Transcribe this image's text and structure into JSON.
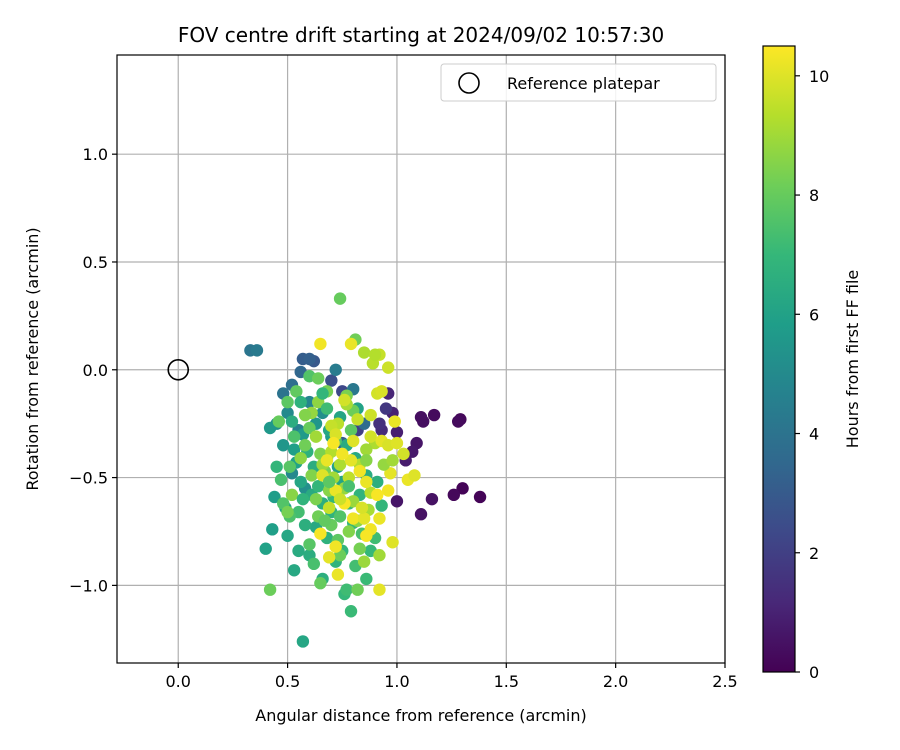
{
  "chart_data": {
    "type": "scatter",
    "title": "FOV centre drift starting at 2024/09/02 10:57:30",
    "xlabel": "Angular distance from reference (arcmin)",
    "ylabel": "Rotation from reference (arcmin)",
    "xlim": [
      -0.28,
      2.5
    ],
    "ylim": [
      -1.36,
      1.46
    ],
    "x_ticks": [
      "0.0",
      "0.5",
      "1.0",
      "1.5",
      "2.0",
      "2.5"
    ],
    "x_tick_values": [
      0.0,
      0.5,
      1.0,
      1.5,
      2.0,
      2.5
    ],
    "y_ticks": [
      "1.0",
      "0.5",
      "0.0",
      "−0.5",
      "−1.0"
    ],
    "y_tick_values": [
      1.0,
      0.5,
      0.0,
      -0.5,
      -1.0
    ],
    "grid": true,
    "legend": {
      "placement": "top-right",
      "entries": [
        {
          "label": "Reference platepar",
          "marker": "open-circle"
        }
      ]
    },
    "reference_point": {
      "x": 0.0,
      "y": 0.0
    },
    "colorbar": {
      "label": "Hours from first FF file",
      "range": [
        0,
        10.5
      ],
      "ticks": [
        "0",
        "2",
        "4",
        "6",
        "8",
        "10"
      ],
      "tick_values": [
        0,
        2,
        4,
        6,
        8,
        10
      ],
      "colormap": "viridis",
      "stops": [
        "#440154",
        "#482878",
        "#3e4989",
        "#31688e",
        "#26828e",
        "#1f9e89",
        "#35b779",
        "#6ece58",
        "#b5de2b",
        "#fde725"
      ]
    },
    "points": [
      {
        "x": 1.38,
        "y": -0.59,
        "t": 0.1
      },
      {
        "x": 1.3,
        "y": -0.55,
        "t": 0.1
      },
      {
        "x": 1.26,
        "y": -0.58,
        "t": 0.2
      },
      {
        "x": 1.29,
        "y": -0.23,
        "t": 0.2
      },
      {
        "x": 1.28,
        "y": -0.24,
        "t": 0.3
      },
      {
        "x": 1.17,
        "y": -0.21,
        "t": 0.3
      },
      {
        "x": 1.12,
        "y": -0.24,
        "t": 0.4
      },
      {
        "x": 1.11,
        "y": -0.22,
        "t": 0.4
      },
      {
        "x": 1.16,
        "y": -0.6,
        "t": 0.5
      },
      {
        "x": 1.11,
        "y": -0.67,
        "t": 0.5
      },
      {
        "x": 1.0,
        "y": -0.61,
        "t": 0.6
      },
      {
        "x": 1.09,
        "y": -0.34,
        "t": 0.6
      },
      {
        "x": 1.07,
        "y": -0.38,
        "t": 0.7
      },
      {
        "x": 1.04,
        "y": -0.42,
        "t": 0.8
      },
      {
        "x": 1.0,
        "y": -0.29,
        "t": 0.9
      },
      {
        "x": 0.98,
        "y": -0.2,
        "t": 1.0
      },
      {
        "x": 0.96,
        "y": -0.11,
        "t": 1.1
      },
      {
        "x": 0.93,
        "y": -0.28,
        "t": 1.3
      },
      {
        "x": 0.92,
        "y": -0.25,
        "t": 1.5
      },
      {
        "x": 0.95,
        "y": -0.18,
        "t": 1.7
      },
      {
        "x": 0.82,
        "y": -0.28,
        "t": 2.0
      },
      {
        "x": 0.75,
        "y": -0.1,
        "t": 2.3
      },
      {
        "x": 0.7,
        "y": -0.05,
        "t": 2.6
      },
      {
        "x": 0.62,
        "y": 0.04,
        "t": 2.9
      },
      {
        "x": 0.57,
        "y": 0.05,
        "t": 3.1
      },
      {
        "x": 0.6,
        "y": 0.05,
        "t": 3.2
      },
      {
        "x": 0.56,
        "y": -0.01,
        "t": 3.5
      },
      {
        "x": 0.52,
        "y": -0.07,
        "t": 3.8
      },
      {
        "x": 0.48,
        "y": -0.11,
        "t": 4.0
      },
      {
        "x": 0.33,
        "y": 0.09,
        "t": 4.1
      },
      {
        "x": 0.36,
        "y": 0.09,
        "t": 4.3
      },
      {
        "x": 0.72,
        "y": 0.0,
        "t": 4.4
      },
      {
        "x": 0.8,
        "y": -0.09,
        "t": 4.2
      },
      {
        "x": 0.85,
        "y": -0.25,
        "t": 3.7
      },
      {
        "x": 0.75,
        "y": -0.34,
        "t": 3.0
      },
      {
        "x": 0.55,
        "y": -0.28,
        "t": 4.6
      },
      {
        "x": 0.6,
        "y": -0.15,
        "t": 4.8
      },
      {
        "x": 0.5,
        "y": -0.2,
        "t": 5.0
      },
      {
        "x": 0.45,
        "y": -0.25,
        "t": 5.3
      },
      {
        "x": 0.42,
        "y": -0.27,
        "t": 5.6
      },
      {
        "x": 0.48,
        "y": -0.35,
        "t": 5.5
      },
      {
        "x": 0.52,
        "y": -0.48,
        "t": 4.9
      },
      {
        "x": 0.58,
        "y": -0.55,
        "t": 5.2
      },
      {
        "x": 0.44,
        "y": -0.59,
        "t": 5.8
      },
      {
        "x": 0.43,
        "y": -0.74,
        "t": 5.9
      },
      {
        "x": 0.4,
        "y": -0.83,
        "t": 6.0
      },
      {
        "x": 0.49,
        "y": -0.64,
        "t": 6.1
      },
      {
        "x": 0.5,
        "y": -0.77,
        "t": 6.2
      },
      {
        "x": 0.53,
        "y": -0.93,
        "t": 6.3
      },
      {
        "x": 0.57,
        "y": -1.26,
        "t": 6.2
      },
      {
        "x": 0.55,
        "y": -0.84,
        "t": 6.4
      },
      {
        "x": 0.6,
        "y": -0.86,
        "t": 6.5
      },
      {
        "x": 0.63,
        "y": -0.73,
        "t": 6.3
      },
      {
        "x": 0.66,
        "y": -0.97,
        "t": 6.6
      },
      {
        "x": 0.68,
        "y": -0.78,
        "t": 6.7
      },
      {
        "x": 0.72,
        "y": -0.89,
        "t": 6.8
      },
      {
        "x": 0.75,
        "y": -0.84,
        "t": 6.9
      },
      {
        "x": 0.76,
        "y": -1.04,
        "t": 7.0
      },
      {
        "x": 0.79,
        "y": -1.12,
        "t": 7.1
      },
      {
        "x": 0.77,
        "y": -1.02,
        "t": 7.2
      },
      {
        "x": 0.81,
        "y": -0.91,
        "t": 7.3
      },
      {
        "x": 0.86,
        "y": -0.97,
        "t": 7.1
      },
      {
        "x": 0.88,
        "y": -0.84,
        "t": 7.0
      },
      {
        "x": 0.9,
        "y": -0.78,
        "t": 7.2
      },
      {
        "x": 0.84,
        "y": -0.76,
        "t": 7.4
      },
      {
        "x": 0.8,
        "y": -0.71,
        "t": 7.0
      },
      {
        "x": 0.7,
        "y": -0.66,
        "t": 6.8
      },
      {
        "x": 0.66,
        "y": -0.62,
        "t": 6.6
      },
      {
        "x": 0.61,
        "y": -0.58,
        "t": 6.4
      },
      {
        "x": 0.56,
        "y": -0.52,
        "t": 6.2
      },
      {
        "x": 0.54,
        "y": -0.43,
        "t": 6.0
      },
      {
        "x": 0.53,
        "y": -0.37,
        "t": 5.9
      },
      {
        "x": 0.57,
        "y": -0.3,
        "t": 5.7
      },
      {
        "x": 0.63,
        "y": -0.25,
        "t": 5.5
      },
      {
        "x": 0.66,
        "y": -0.2,
        "t": 5.2
      },
      {
        "x": 0.7,
        "y": -0.31,
        "t": 5.8
      },
      {
        "x": 0.73,
        "y": -0.45,
        "t": 6.0
      },
      {
        "x": 0.75,
        "y": -0.52,
        "t": 6.1
      },
      {
        "x": 0.68,
        "y": -0.41,
        "t": 6.3
      },
      {
        "x": 0.62,
        "y": -0.45,
        "t": 6.5
      },
      {
        "x": 0.59,
        "y": -0.38,
        "t": 6.7
      },
      {
        "x": 0.64,
        "y": -0.54,
        "t": 6.9
      },
      {
        "x": 0.71,
        "y": -0.59,
        "t": 7.0
      },
      {
        "x": 0.78,
        "y": -0.62,
        "t": 7.1
      },
      {
        "x": 0.83,
        "y": -0.58,
        "t": 6.8
      },
      {
        "x": 0.86,
        "y": -0.49,
        "t": 6.5
      },
      {
        "x": 0.81,
        "y": -0.41,
        "t": 6.3
      },
      {
        "x": 0.77,
        "y": -0.35,
        "t": 6.4
      },
      {
        "x": 0.69,
        "y": -0.28,
        "t": 6.2
      },
      {
        "x": 0.74,
        "y": -0.22,
        "t": 6.1
      },
      {
        "x": 0.82,
        "y": -0.18,
        "t": 6.0
      },
      {
        "x": 0.91,
        "y": -0.52,
        "t": 6.6
      },
      {
        "x": 0.93,
        "y": -0.63,
        "t": 6.9
      },
      {
        "x": 0.55,
        "y": -0.66,
        "t": 7.3
      },
      {
        "x": 0.51,
        "y": -0.68,
        "t": 7.5
      },
      {
        "x": 0.48,
        "y": -0.62,
        "t": 7.6
      },
      {
        "x": 0.47,
        "y": -0.51,
        "t": 7.4
      },
      {
        "x": 0.51,
        "y": -0.45,
        "t": 7.7
      },
      {
        "x": 0.53,
        "y": -0.31,
        "t": 7.5
      },
      {
        "x": 0.5,
        "y": -0.15,
        "t": 7.8
      },
      {
        "x": 0.46,
        "y": -0.24,
        "t": 8.0
      },
      {
        "x": 0.54,
        "y": -0.1,
        "t": 7.9
      },
      {
        "x": 0.6,
        "y": -0.03,
        "t": 7.6
      },
      {
        "x": 0.64,
        "y": -0.04,
        "t": 8.1
      },
      {
        "x": 0.74,
        "y": 0.33,
        "t": 8.0
      },
      {
        "x": 0.81,
        "y": 0.14,
        "t": 8.2
      },
      {
        "x": 0.68,
        "y": -0.1,
        "t": 8.3
      },
      {
        "x": 0.77,
        "y": -0.12,
        "t": 8.4
      },
      {
        "x": 0.8,
        "y": -0.19,
        "t": 8.1
      },
      {
        "x": 0.79,
        "y": -0.28,
        "t": 7.8
      },
      {
        "x": 0.72,
        "y": -0.33,
        "t": 7.6
      },
      {
        "x": 0.6,
        "y": -0.27,
        "t": 8.0
      },
      {
        "x": 0.58,
        "y": -0.35,
        "t": 8.2
      },
      {
        "x": 0.65,
        "y": -0.39,
        "t": 8.4
      },
      {
        "x": 0.61,
        "y": -0.49,
        "t": 8.5
      },
      {
        "x": 0.67,
        "y": -0.47,
        "t": 8.3
      },
      {
        "x": 0.69,
        "y": -0.56,
        "t": 8.6
      },
      {
        "x": 0.63,
        "y": -0.6,
        "t": 8.4
      },
      {
        "x": 0.64,
        "y": -0.68,
        "t": 8.2
      },
      {
        "x": 0.7,
        "y": -0.72,
        "t": 8.0
      },
      {
        "x": 0.73,
        "y": -0.79,
        "t": 7.8
      },
      {
        "x": 0.74,
        "y": -0.86,
        "t": 8.1
      },
      {
        "x": 0.78,
        "y": -0.75,
        "t": 8.5
      },
      {
        "x": 0.83,
        "y": -0.83,
        "t": 8.3
      },
      {
        "x": 0.82,
        "y": -1.02,
        "t": 8.2
      },
      {
        "x": 0.65,
        "y": -0.99,
        "t": 8.0
      },
      {
        "x": 0.42,
        "y": -1.02,
        "t": 8.1
      },
      {
        "x": 0.5,
        "y": -0.66,
        "t": 8.3
      },
      {
        "x": 0.52,
        "y": -0.58,
        "t": 8.6
      },
      {
        "x": 0.56,
        "y": -0.41,
        "t": 8.7
      },
      {
        "x": 0.66,
        "y": -0.44,
        "t": 8.9
      },
      {
        "x": 0.71,
        "y": -0.5,
        "t": 9.0
      },
      {
        "x": 0.76,
        "y": -0.55,
        "t": 8.8
      },
      {
        "x": 0.8,
        "y": -0.61,
        "t": 8.9
      },
      {
        "x": 0.87,
        "y": -0.65,
        "t": 9.1
      },
      {
        "x": 0.82,
        "y": -0.7,
        "t": 8.7
      },
      {
        "x": 0.85,
        "y": -0.89,
        "t": 8.9
      },
      {
        "x": 0.92,
        "y": -0.86,
        "t": 9.0
      },
      {
        "x": 0.9,
        "y": -0.34,
        "t": 9.2
      },
      {
        "x": 0.86,
        "y": -0.37,
        "t": 9.0
      },
      {
        "x": 0.83,
        "y": -0.44,
        "t": 9.3
      },
      {
        "x": 0.88,
        "y": -0.57,
        "t": 9.4
      },
      {
        "x": 0.78,
        "y": -0.5,
        "t": 9.5
      },
      {
        "x": 0.74,
        "y": -0.44,
        "t": 9.2
      },
      {
        "x": 0.7,
        "y": -0.38,
        "t": 9.3
      },
      {
        "x": 0.73,
        "y": -0.25,
        "t": 9.4
      },
      {
        "x": 0.77,
        "y": -0.16,
        "t": 9.1
      },
      {
        "x": 0.85,
        "y": 0.08,
        "t": 9.2
      },
      {
        "x": 0.89,
        "y": 0.03,
        "t": 9.4
      },
      {
        "x": 0.92,
        "y": 0.07,
        "t": 9.6
      },
      {
        "x": 0.96,
        "y": 0.01,
        "t": 9.7
      },
      {
        "x": 0.91,
        "y": -0.11,
        "t": 9.8
      },
      {
        "x": 0.93,
        "y": -0.1,
        "t": 9.9
      },
      {
        "x": 0.88,
        "y": -0.21,
        "t": 9.7
      },
      {
        "x": 0.82,
        "y": -0.23,
        "t": 9.6
      },
      {
        "x": 0.76,
        "y": -0.14,
        "t": 9.8
      },
      {
        "x": 0.7,
        "y": -0.26,
        "t": 9.6
      },
      {
        "x": 0.72,
        "y": -0.3,
        "t": 9.9
      },
      {
        "x": 0.8,
        "y": -0.33,
        "t": 10.0
      },
      {
        "x": 0.88,
        "y": -0.31,
        "t": 9.8
      },
      {
        "x": 0.93,
        "y": -0.33,
        "t": 10.1
      },
      {
        "x": 0.96,
        "y": -0.35,
        "t": 9.9
      },
      {
        "x": 0.99,
        "y": -0.24,
        "t": 10.2
      },
      {
        "x": 1.0,
        "y": -0.34,
        "t": 10.0
      },
      {
        "x": 1.03,
        "y": -0.39,
        "t": 9.8
      },
      {
        "x": 0.97,
        "y": -0.48,
        "t": 10.1
      },
      {
        "x": 1.05,
        "y": -0.51,
        "t": 10.2
      },
      {
        "x": 1.08,
        "y": -0.49,
        "t": 10.0
      },
      {
        "x": 0.96,
        "y": -0.56,
        "t": 10.3
      },
      {
        "x": 0.91,
        "y": -0.58,
        "t": 10.4
      },
      {
        "x": 0.86,
        "y": -0.52,
        "t": 10.2
      },
      {
        "x": 0.83,
        "y": -0.47,
        "t": 10.3
      },
      {
        "x": 0.79,
        "y": -0.42,
        "t": 10.1
      },
      {
        "x": 0.75,
        "y": -0.39,
        "t": 10.3
      },
      {
        "x": 0.71,
        "y": -0.34,
        "t": 10.4
      },
      {
        "x": 0.68,
        "y": -0.42,
        "t": 10.2
      },
      {
        "x": 0.66,
        "y": -0.49,
        "t": 10.0
      },
      {
        "x": 0.72,
        "y": -0.56,
        "t": 10.2
      },
      {
        "x": 0.76,
        "y": -0.62,
        "t": 10.4
      },
      {
        "x": 0.8,
        "y": -0.69,
        "t": 10.3
      },
      {
        "x": 0.85,
        "y": -0.69,
        "t": 10.1
      },
      {
        "x": 0.88,
        "y": -0.74,
        "t": 10.3
      },
      {
        "x": 0.92,
        "y": -0.69,
        "t": 10.2
      },
      {
        "x": 0.98,
        "y": -0.8,
        "t": 10.0
      },
      {
        "x": 0.86,
        "y": -0.77,
        "t": 10.4
      },
      {
        "x": 0.72,
        "y": -0.82,
        "t": 10.3
      },
      {
        "x": 0.69,
        "y": -0.87,
        "t": 10.1
      },
      {
        "x": 0.73,
        "y": -0.95,
        "t": 10.2
      },
      {
        "x": 0.92,
        "y": -1.02,
        "t": 10.1
      },
      {
        "x": 0.65,
        "y": -0.76,
        "t": 10.4
      },
      {
        "x": 0.65,
        "y": 0.12,
        "t": 10.3
      },
      {
        "x": 0.79,
        "y": 0.12,
        "t": 10.2
      },
      {
        "x": 0.9,
        "y": 0.07,
        "t": 9.3
      },
      {
        "x": 0.74,
        "y": -0.6,
        "t": 9.7
      },
      {
        "x": 0.69,
        "y": -0.64,
        "t": 9.6
      },
      {
        "x": 0.84,
        "y": -0.64,
        "t": 9.9
      },
      {
        "x": 0.63,
        "y": -0.31,
        "t": 9.0
      },
      {
        "x": 0.61,
        "y": -0.2,
        "t": 8.8
      },
      {
        "x": 0.58,
        "y": -0.21,
        "t": 8.5
      },
      {
        "x": 0.64,
        "y": -0.15,
        "t": 8.7
      },
      {
        "x": 0.86,
        "y": -0.42,
        "t": 8.6
      },
      {
        "x": 0.94,
        "y": -0.44,
        "t": 8.8
      },
      {
        "x": 0.98,
        "y": -0.42,
        "t": 9.0
      },
      {
        "x": 0.6,
        "y": -0.81,
        "t": 7.7
      },
      {
        "x": 0.62,
        "y": -0.9,
        "t": 7.4
      },
      {
        "x": 0.67,
        "y": -0.7,
        "t": 7.9
      },
      {
        "x": 0.58,
        "y": -0.72,
        "t": 6.6
      },
      {
        "x": 0.57,
        "y": -0.6,
        "t": 6.8
      },
      {
        "x": 0.45,
        "y": -0.45,
        "t": 6.9
      },
      {
        "x": 0.56,
        "y": -0.15,
        "t": 6.7
      },
      {
        "x": 0.52,
        "y": -0.24,
        "t": 6.5
      },
      {
        "x": 0.66,
        "y": -0.11,
        "t": 6.9
      },
      {
        "x": 0.68,
        "y": -0.18,
        "t": 7.2
      },
      {
        "x": 0.78,
        "y": -0.54,
        "t": 7.4
      },
      {
        "x": 0.74,
        "y": -0.68,
        "t": 7.6
      },
      {
        "x": 0.69,
        "y": -0.52,
        "t": 7.8
      }
    ]
  }
}
